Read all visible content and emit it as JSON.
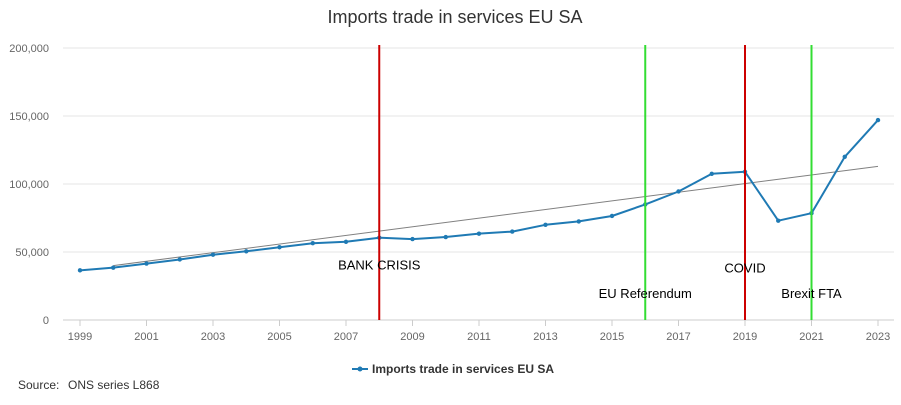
{
  "chart_data": {
    "type": "line",
    "title": "Imports trade in services EU SA",
    "xlabel": "",
    "ylabel": "",
    "xlim": [
      1999,
      2023
    ],
    "ylim": [
      0,
      200000
    ],
    "x_ticks": [
      "1999",
      "2001",
      "2003",
      "2005",
      "2007",
      "2009",
      "2011",
      "2013",
      "2015",
      "2017",
      "2019",
      "2021",
      "2023"
    ],
    "y_ticks": [
      "0",
      "50,000",
      "100,000",
      "150,000",
      "200,000"
    ],
    "grid": true,
    "legend_position": "bottom-center",
    "series": [
      {
        "name": "Imports trade in services EU SA",
        "color": "#1f7ab4",
        "x": [
          1999,
          2000,
          2001,
          2002,
          2003,
          2004,
          2005,
          2006,
          2007,
          2008,
          2009,
          2010,
          2011,
          2012,
          2013,
          2014,
          2015,
          2016,
          2017,
          2018,
          2019,
          2020,
          2021,
          2022,
          2023
        ],
        "values": [
          36500,
          38500,
          41500,
          44500,
          48000,
          50500,
          53500,
          56500,
          57500,
          60500,
          59500,
          61000,
          63500,
          65000,
          70000,
          72500,
          76500,
          85000,
          94500,
          107500,
          109000,
          73000,
          78500,
          120000,
          147000
        ]
      }
    ],
    "trendline": {
      "color": "#808080",
      "x": [
        2000,
        2023
      ],
      "values": [
        40000,
        113000
      ]
    },
    "vertical_lines": [
      {
        "x": 2008,
        "color": "#cc0000",
        "label": "BANK CRISIS",
        "label_value": 40000
      },
      {
        "x": 2016,
        "color": "#33dd33",
        "label": "EU Referendum",
        "label_value": 19000
      },
      {
        "x": 2019,
        "color": "#cc0000",
        "label": "COVID",
        "label_value": 38000
      },
      {
        "x": 2021,
        "color": "#33dd33",
        "label": "Brexit FTA",
        "label_value": 19000
      }
    ]
  },
  "source": {
    "label": "Source:",
    "value": "ONS series L868"
  }
}
